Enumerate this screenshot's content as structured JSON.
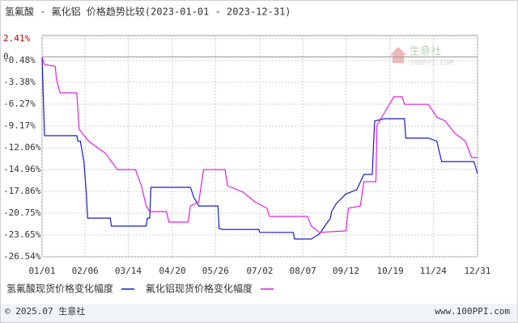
{
  "chart_data": {
    "type": "line",
    "title": "氢氟酸 - 氟化铝 价格趋势比较(2023-01-01 - 2023-12-31)",
    "xlim": [
      0,
      364
    ],
    "xticks": [
      {
        "value": 0,
        "label": "01/01"
      },
      {
        "value": 36,
        "label": "02/06"
      },
      {
        "value": 72,
        "label": "03/14"
      },
      {
        "value": 109,
        "label": "04/20"
      },
      {
        "value": 145,
        "label": "05/26"
      },
      {
        "value": 182,
        "label": "07/02"
      },
      {
        "value": 218,
        "label": "08/07"
      },
      {
        "value": 254,
        "label": "09/12"
      },
      {
        "value": 291,
        "label": "10/19"
      },
      {
        "value": 327,
        "label": "11/24"
      },
      {
        "value": 364,
        "label": "12/31"
      }
    ],
    "ylim": [
      -26.54,
      2.41
    ],
    "yticks": [
      {
        "value": 2.41,
        "label": "2.41%"
      },
      {
        "value": -0.48,
        "label": "-0.48%"
      },
      {
        "value": -3.38,
        "label": "-3.38%"
      },
      {
        "value": -6.27,
        "label": "-6.27%"
      },
      {
        "value": -9.17,
        "label": "-9.17%"
      },
      {
        "value": -12.06,
        "label": "-12.06%"
      },
      {
        "value": -14.96,
        "label": "-14.96%"
      },
      {
        "value": -17.86,
        "label": "-17.86%"
      },
      {
        "value": -20.75,
        "label": "-20.75%"
      },
      {
        "value": -23.65,
        "label": "-23.65%"
      },
      {
        "value": -26.54,
        "label": "-26.54%"
      }
    ],
    "zero_line": {
      "value": 0,
      "label": "0"
    },
    "grid": true,
    "series": [
      {
        "name": "氢氟酸现货价格变化幅度",
        "color": "#1a1acc",
        "x": [
          0,
          2,
          29,
          30,
          32,
          35,
          37,
          38,
          57,
          58,
          87,
          88,
          90,
          91,
          124,
          127,
          131,
          147,
          148,
          151,
          181,
          182,
          210,
          211,
          225,
          232,
          235,
          241,
          242,
          246,
          254,
          263,
          269,
          276,
          278,
          286,
          303,
          304,
          323,
          330,
          334,
          361,
          364
        ],
        "values": [
          0,
          -10.46,
          -10.46,
          -11.2,
          -11.2,
          -13.9,
          -18.2,
          -21.4,
          -21.4,
          -22.47,
          -22.47,
          -21.4,
          -21.4,
          -17.32,
          -17.32,
          -18.7,
          -19.8,
          -19.8,
          -22.79,
          -22.9,
          -22.9,
          -23.3,
          -23.3,
          -24.18,
          -24.18,
          -23.5,
          -22.79,
          -21.4,
          -20.54,
          -19.46,
          -18.2,
          -17.64,
          -15.6,
          -15.6,
          -8.5,
          -8.2,
          -8.2,
          -10.78,
          -10.78,
          -11.2,
          -13.9,
          -13.9,
          -15.5
        ]
      },
      {
        "name": "氟化铝现货价格变化幅度",
        "color": "#e020e0",
        "x": [
          0,
          2,
          11,
          12,
          15,
          29,
          31,
          39,
          53,
          63,
          78,
          83,
          87,
          90,
          104,
          106,
          122,
          124,
          131,
          135,
          153,
          155,
          168,
          178,
          188,
          190,
          222,
          225,
          232,
          254,
          256,
          266,
          269,
          279,
          280,
          286,
          294,
          301,
          303,
          323,
          330,
          337,
          345,
          354,
          359,
          364
        ],
        "values": [
          0,
          -1.02,
          -1.24,
          -2.95,
          -4.77,
          -4.77,
          -9.6,
          -11.2,
          -12.8,
          -14.96,
          -14.96,
          -17.1,
          -19.8,
          -20.54,
          -20.54,
          -21.93,
          -21.93,
          -19.8,
          -19.25,
          -14.96,
          -14.96,
          -17.1,
          -17.96,
          -19.25,
          -20.1,
          -21.18,
          -21.18,
          -22.47,
          -23.3,
          -23.1,
          -20.1,
          -19.8,
          -16.57,
          -16.57,
          -9.06,
          -7.45,
          -5.3,
          -5.3,
          -6.3,
          -6.3,
          -8.0,
          -8.5,
          -10.14,
          -11.2,
          -13.35,
          -13.35
        ]
      }
    ],
    "watermark": {
      "name": "生意社",
      "site": "100PPI.COM"
    },
    "footer": {
      "left": "© 2025.07 生意社",
      "right": "www.100PPI.com"
    }
  }
}
